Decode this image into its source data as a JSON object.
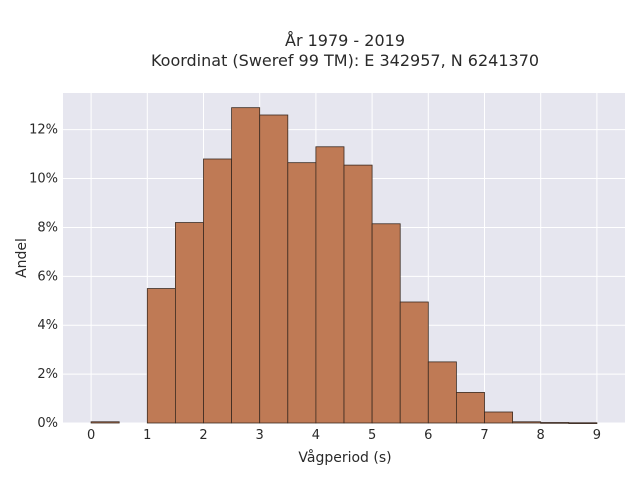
{
  "chart_data": {
    "type": "bar",
    "title": [
      "År 1979 - 2019",
      "Koordinat (Sweref 99 TM): E 342957, N 6241370"
    ],
    "xlabel": "Vågperiod (s)",
    "ylabel": "Andel",
    "xlim": [
      -0.5,
      9.5
    ],
    "ylim": [
      0,
      13.5
    ],
    "bin_width": 0.5,
    "bins": [
      {
        "start": 0.0,
        "value": 0.05
      },
      {
        "start": 1.0,
        "value": 5.5
      },
      {
        "start": 1.5,
        "value": 8.2
      },
      {
        "start": 2.0,
        "value": 10.8
      },
      {
        "start": 2.5,
        "value": 12.9
      },
      {
        "start": 3.0,
        "value": 12.6
      },
      {
        "start": 3.5,
        "value": 10.65
      },
      {
        "start": 4.0,
        "value": 11.3
      },
      {
        "start": 4.5,
        "value": 10.55
      },
      {
        "start": 5.0,
        "value": 8.15
      },
      {
        "start": 5.5,
        "value": 4.95
      },
      {
        "start": 6.0,
        "value": 2.5
      },
      {
        "start": 6.5,
        "value": 1.25
      },
      {
        "start": 7.0,
        "value": 0.45
      },
      {
        "start": 7.5,
        "value": 0.05
      },
      {
        "start": 8.0,
        "value": 0.02
      },
      {
        "start": 8.5,
        "value": 0.01
      }
    ],
    "x_ticks": [
      0,
      1,
      2,
      3,
      4,
      5,
      6,
      7,
      8,
      9
    ],
    "x_tick_labels": [
      "0",
      "1",
      "2",
      "3",
      "4",
      "5",
      "6",
      "7",
      "8",
      "9"
    ],
    "y_ticks": [
      0,
      2,
      4,
      6,
      8,
      10,
      12
    ],
    "y_tick_labels": [
      "0%",
      "2%",
      "4%",
      "6%",
      "8%",
      "10%",
      "12%"
    ],
    "grid": true,
    "colors": {
      "bar": "#bf7a55",
      "bar_edge": "#3b2a20",
      "plot_bg": "#e6e6ef",
      "grid": "#ffffff"
    }
  }
}
